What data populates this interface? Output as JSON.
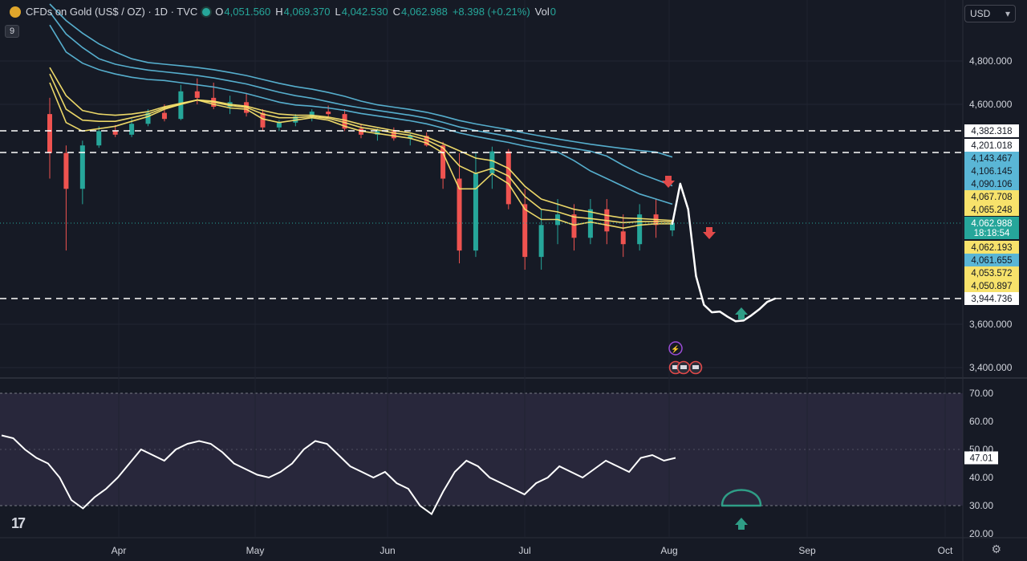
{
  "header": {
    "symbol": "CFDs on Gold (US$ / OZ) · 1D · TVC",
    "open_label": "O",
    "open": "4,051.560",
    "high_label": "H",
    "high": "4,069.370",
    "low_label": "L",
    "low": "4,042.530",
    "close_label": "C",
    "close": "4,062.988",
    "change": "+8.398 (+0.21%)",
    "vol_label": "Vol",
    "vol": "0"
  },
  "indicator_badge": "9",
  "currency": "USD",
  "colors": {
    "background": "#161a25",
    "up": "#26a69a",
    "down": "#ef5350",
    "ema_fast": "#f7e26b",
    "ema_slow": "#5ab6d6",
    "rsi_line": "#ffffff",
    "rsi_band": "#2b2a40"
  },
  "chart_data": [
    {
      "type": "candlestick",
      "instrument": "CFDs on Gold (US$ / OZ)",
      "timeframe": "1D",
      "x_ticks": [
        "Apr",
        "May",
        "Jun",
        "Jul",
        "Aug",
        "Sep",
        "Oct"
      ],
      "y_ticks": [
        "3,400.000",
        "3,600.000",
        "4,600.000",
        "4,800.000"
      ],
      "ohlc": [
        {
          "o": 4520,
          "h": 4630,
          "l": 4150,
          "c": 4200
        },
        {
          "o": 4200,
          "h": 4260,
          "l": 4020,
          "c": 4130
        },
        {
          "o": 4130,
          "h": 4300,
          "l": 4100,
          "c": 4260
        },
        {
          "o": 4260,
          "h": 4420,
          "l": 4240,
          "c": 4380
        },
        {
          "o": 4380,
          "h": 4430,
          "l": 4330,
          "c": 4350
        },
        {
          "o": 4350,
          "h": 4480,
          "l": 4330,
          "c": 4440
        },
        {
          "o": 4440,
          "h": 4560,
          "l": 4420,
          "c": 4530
        },
        {
          "o": 4530,
          "h": 4600,
          "l": 4460,
          "c": 4480
        },
        {
          "o": 4480,
          "h": 4690,
          "l": 4470,
          "c": 4660
        },
        {
          "o": 4660,
          "h": 4720,
          "l": 4600,
          "c": 4630
        },
        {
          "o": 4630,
          "h": 4700,
          "l": 4560,
          "c": 4580
        },
        {
          "o": 4580,
          "h": 4640,
          "l": 4520,
          "c": 4610
        },
        {
          "o": 4610,
          "h": 4650,
          "l": 4500,
          "c": 4530
        },
        {
          "o": 4530,
          "h": 4560,
          "l": 4380,
          "c": 4410
        },
        {
          "o": 4410,
          "h": 4470,
          "l": 4380,
          "c": 4450
        },
        {
          "o": 4450,
          "h": 4520,
          "l": 4420,
          "c": 4500
        },
        {
          "o": 4500,
          "h": 4560,
          "l": 4460,
          "c": 4540
        },
        {
          "o": 4540,
          "h": 4590,
          "l": 4490,
          "c": 4520
        },
        {
          "o": 4520,
          "h": 4560,
          "l": 4380,
          "c": 4400
        },
        {
          "o": 4400,
          "h": 4440,
          "l": 4320,
          "c": 4350
        },
        {
          "o": 4350,
          "h": 4400,
          "l": 4300,
          "c": 4380
        },
        {
          "o": 4380,
          "h": 4410,
          "l": 4300,
          "c": 4320
        },
        {
          "o": 4320,
          "h": 4360,
          "l": 4260,
          "c": 4340
        },
        {
          "o": 4340,
          "h": 4370,
          "l": 4250,
          "c": 4260
        },
        {
          "o": 4260,
          "h": 4290,
          "l": 4130,
          "c": 4150
        },
        {
          "o": 4150,
          "h": 4200,
          "l": 4000,
          "c": 4020
        },
        {
          "o": 4020,
          "h": 4200,
          "l": 4010,
          "c": 4160
        },
        {
          "o": 4160,
          "h": 4250,
          "l": 4130,
          "c": 4210
        },
        {
          "o": 4210,
          "h": 4230,
          "l": 4090,
          "c": 4100
        },
        {
          "o": 4100,
          "h": 4130,
          "l": 3990,
          "c": 4010
        },
        {
          "o": 4010,
          "h": 4090,
          "l": 3990,
          "c": 4060
        },
        {
          "o": 4060,
          "h": 4110,
          "l": 4030,
          "c": 4080
        },
        {
          "o": 4080,
          "h": 4100,
          "l": 4020,
          "c": 4040
        },
        {
          "o": 4040,
          "h": 4110,
          "l": 4030,
          "c": 4090
        },
        {
          "o": 4090,
          "h": 4110,
          "l": 4030,
          "c": 4050
        },
        {
          "o": 4050,
          "h": 4080,
          "l": 4010,
          "c": 4030
        },
        {
          "o": 4030,
          "h": 4100,
          "l": 4020,
          "c": 4080
        },
        {
          "o": 4080,
          "h": 4110,
          "l": 4040,
          "c": 4060
        },
        {
          "o": 4051.56,
          "h": 4069.37,
          "l": 4042.53,
          "c": 4062.988
        }
      ],
      "moving_averages": [
        {
          "color": "#f7e26b",
          "values": [
            4700,
            4450,
            4380,
            4400,
            4420,
            4460,
            4500,
            4560,
            4600,
            4620,
            4600,
            4570,
            4560,
            4480,
            4450,
            4470,
            4490,
            4470,
            4420,
            4380,
            4360,
            4340,
            4320,
            4280,
            4200,
            4130,
            4130,
            4160,
            4140,
            4090,
            4070,
            4070,
            4060,
            4065,
            4060,
            4055,
            4060,
            4062,
            4062
          ]
        },
        {
          "color": "#f7e26b",
          "values": [
            4740,
            4560,
            4470,
            4460,
            4460,
            4490,
            4520,
            4570,
            4600,
            4620,
            4610,
            4590,
            4575,
            4520,
            4490,
            4490,
            4500,
            4485,
            4450,
            4410,
            4390,
            4365,
            4345,
            4305,
            4240,
            4175,
            4160,
            4170,
            4155,
            4115,
            4090,
            4085,
            4075,
            4072,
            4068,
            4064,
            4066,
            4066,
            4065
          ]
        },
        {
          "color": "#f7e26b",
          "values": [
            4770,
            4640,
            4550,
            4520,
            4510,
            4520,
            4540,
            4580,
            4605,
            4620,
            4615,
            4600,
            4585,
            4550,
            4520,
            4510,
            4510,
            4495,
            4470,
            4435,
            4410,
            4385,
            4365,
            4330,
            4275,
            4215,
            4190,
            4185,
            4170,
            4135,
            4110,
            4100,
            4090,
            4085,
            4078,
            4073,
            4072,
            4070,
            4068
          ]
        },
        {
          "color": "#5ab6d6",
          "values": [
            4880,
            4820,
            4790,
            4760,
            4740,
            4725,
            4715,
            4710,
            4700,
            4690,
            4680,
            4665,
            4650,
            4630,
            4610,
            4595,
            4585,
            4570,
            4550,
            4525,
            4505,
            4485,
            4465,
            4440,
            4405,
            4365,
            4335,
            4310,
            4285,
            4255,
            4230,
            4205,
            4185,
            4165,
            4150,
            4135,
            4120,
            4110,
            4100
          ]
        },
        {
          "color": "#5ab6d6",
          "values": [
            4910,
            4860,
            4830,
            4805,
            4785,
            4770,
            4758,
            4750,
            4742,
            4733,
            4722,
            4708,
            4694,
            4675,
            4656,
            4640,
            4628,
            4612,
            4593,
            4570,
            4550,
            4530,
            4510,
            4486,
            4452,
            4414,
            4385,
            4360,
            4336,
            4306,
            4280,
            4256,
            4234,
            4212,
            4194,
            4176,
            4160,
            4148,
            4136
          ]
        },
        {
          "color": "#5ab6d6",
          "values": [
            4930,
            4890,
            4862,
            4838,
            4820,
            4805,
            4793,
            4785,
            4778,
            4770,
            4760,
            4747,
            4733,
            4715,
            4697,
            4682,
            4670,
            4655,
            4637,
            4615,
            4596,
            4577,
            4558,
            4535,
            4503,
            4467,
            4439,
            4415,
            4392,
            4363,
            4338,
            4314,
            4292,
            4270,
            4252,
            4234,
            4218,
            4205,
            4192
          ]
        }
      ],
      "horizontal_levels": [
        4382.318,
        4201.018,
        4143.467,
        4106.145,
        4090.106,
        4067.708,
        4065.248,
        4062.988,
        4062.193,
        4061.655,
        4053.572,
        4050.897,
        3944.736
      ],
      "dashed_levels": [
        4382.318,
        4201.018,
        3944.736
      ],
      "projection_path": [
        4062,
        4140,
        4090,
        3980,
        3860,
        3760,
        3770,
        3700,
        3640,
        3650,
        3720,
        3800,
        3900,
        3944.736
      ],
      "price_labels": [
        {
          "text": "4,382.318",
          "bg": "#ffffff",
          "fg": "#131722"
        },
        {
          "text": "4,201.018",
          "bg": "#ffffff",
          "fg": "#131722"
        },
        {
          "text": "4,143.467",
          "bg": "#5ab6d6",
          "fg": "#131722"
        },
        {
          "text": "4,106.145",
          "bg": "#5ab6d6",
          "fg": "#131722"
        },
        {
          "text": "4,090.106",
          "bg": "#5ab6d6",
          "fg": "#131722"
        },
        {
          "text": "4,067.708",
          "bg": "#f7e26b",
          "fg": "#131722"
        },
        {
          "text": "4,065.248",
          "bg": "#f7e26b",
          "fg": "#131722"
        },
        {
          "text": "4,062.988",
          "bg": "#26a69a",
          "fg": "#ffffff"
        },
        {
          "text": "18:18:54",
          "bg": "#26a69a",
          "fg": "#ffffff"
        },
        {
          "text": "4,062.193",
          "bg": "#f7e26b",
          "fg": "#131722"
        },
        {
          "text": "4,061.655",
          "bg": "#5ab6d6",
          "fg": "#131722"
        },
        {
          "text": "4,053.572",
          "bg": "#f7e26b",
          "fg": "#131722"
        },
        {
          "text": "4,050.897",
          "bg": "#f7e26b",
          "fg": "#131722"
        },
        {
          "text": "3,944.736",
          "bg": "#ffffff",
          "fg": "#131722"
        }
      ],
      "annotations": [
        "down-arrow",
        "down-arrow",
        "up-arrow"
      ]
    },
    {
      "type": "line",
      "name": "RSI",
      "y_ticks": [
        "20.00",
        "30.00",
        "40.00",
        "50.00",
        "60.00",
        "70.00"
      ],
      "ylim": [
        17,
        76
      ],
      "band": [
        30,
        70
      ],
      "values": [
        55,
        54,
        50,
        47,
        45,
        40,
        32,
        29,
        33,
        36,
        40,
        45,
        50,
        48,
        46,
        50,
        52,
        53,
        52,
        49,
        45,
        43,
        41,
        40,
        42,
        45,
        50,
        53,
        52,
        48,
        44,
        42,
        40,
        42,
        38,
        36,
        30,
        27,
        35,
        42,
        46,
        44,
        40,
        38,
        36,
        34,
        38,
        40,
        44,
        42,
        40,
        43,
        46,
        44,
        42,
        47,
        48,
        46,
        47
      ],
      "last_value": "47.01"
    }
  ]
}
